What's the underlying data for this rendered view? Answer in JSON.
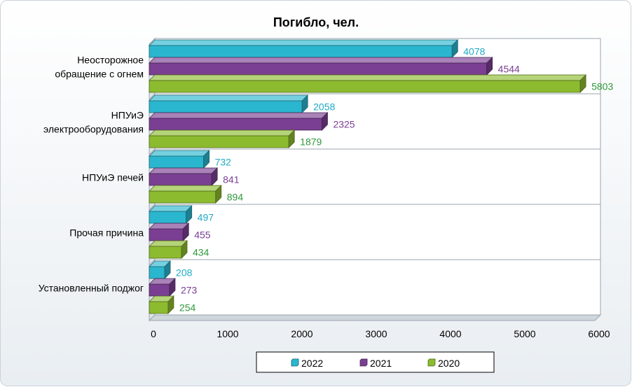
{
  "chart_data": {
    "type": "bar",
    "orientation": "horizontal",
    "title": "Погибло, чел.",
    "xlabel": "",
    "ylabel": "",
    "xlim": [
      0,
      6000
    ],
    "ticks": [
      0,
      1000,
      2000,
      3000,
      4000,
      5000,
      6000
    ],
    "tick_labels": [
      "0",
      "1000",
      "2000",
      "3000",
      "4000",
      "5000",
      "6000"
    ],
    "grid": true,
    "legend_position": "bottom",
    "categories": [
      [
        "Неосторожное",
        "обращение с огнем"
      ],
      [
        "НПУиЭ",
        "электрооборудования"
      ],
      [
        "НПУиЭ печей"
      ],
      [
        "Прочая причина"
      ],
      [
        "Установленный поджог"
      ]
    ],
    "series": [
      {
        "name": "2022",
        "color": "#2BB6CF",
        "label_color": "#1FA9C6",
        "values": [
          4078,
          2058,
          732,
          497,
          208
        ]
      },
      {
        "name": "2021",
        "color": "#7A3F92",
        "label_color": "#7B3E94",
        "values": [
          4544,
          2325,
          841,
          455,
          273
        ]
      },
      {
        "name": "2020",
        "color": "#8DBB2F",
        "label_color": "#2E9A3B",
        "values": [
          5803,
          1879,
          894,
          434,
          254
        ]
      }
    ]
  }
}
